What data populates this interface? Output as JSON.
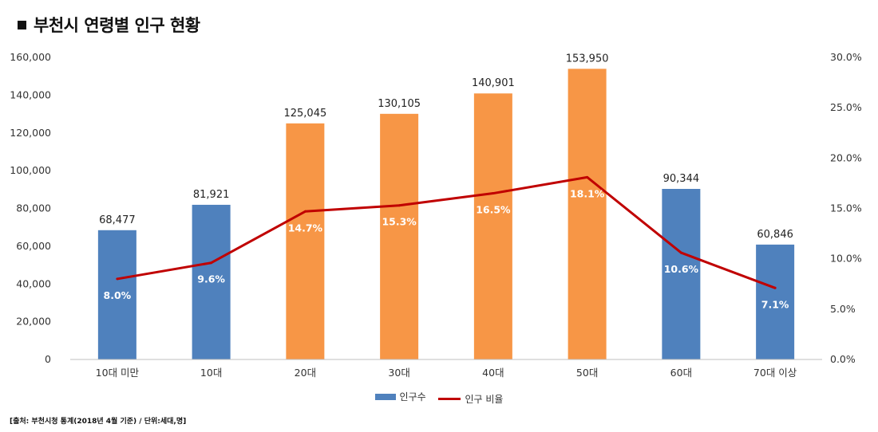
{
  "title": "부천시 연령별 인구 현황",
  "source": "[출처: 부천시청 통계(2018년 4월 기준) / 단위:세대,명]",
  "legend": {
    "bar": "인구수",
    "line": "인구 비율"
  },
  "colors": {
    "blue": "#4F81BD",
    "orange": "#F79646",
    "line": "#C00000"
  },
  "chart_data": {
    "type": "bar",
    "categories": [
      "10대 미만",
      "10대",
      "20대",
      "30대",
      "40대",
      "50대",
      "60대",
      "70대 이상"
    ],
    "series": [
      {
        "name": "인구수",
        "type": "bar",
        "axis": "left",
        "values": [
          68477,
          81921,
          125045,
          130105,
          140901,
          153950,
          90344,
          60846
        ],
        "value_labels": [
          "68,477",
          "81,921",
          "125,045",
          "130,105",
          "140,901",
          "153,950",
          "90,344",
          "60,846"
        ],
        "bar_colors": [
          "blue",
          "blue",
          "orange",
          "orange",
          "orange",
          "orange",
          "blue",
          "blue"
        ]
      },
      {
        "name": "인구 비율",
        "type": "line",
        "axis": "right",
        "values": [
          8.0,
          9.6,
          14.7,
          15.3,
          16.5,
          18.1,
          10.6,
          7.1
        ],
        "value_labels": [
          "8.0%",
          "9.6%",
          "14.7%",
          "15.3%",
          "16.5%",
          "18.1%",
          "10.6%",
          "7.1%"
        ]
      }
    ],
    "y_left": {
      "min": 0,
      "max": 160000,
      "ticks": [
        0,
        20000,
        40000,
        60000,
        80000,
        100000,
        120000,
        140000,
        160000
      ],
      "tick_labels": [
        "0",
        "20,000",
        "40,000",
        "60,000",
        "80,000",
        "100,000",
        "120,000",
        "140,000",
        "160,000"
      ]
    },
    "y_right": {
      "min": 0,
      "max": 30,
      "ticks": [
        0,
        5,
        10,
        15,
        20,
        25,
        30
      ],
      "tick_labels": [
        "0.0%",
        "5.0%",
        "10.0%",
        "15.0%",
        "20.0%",
        "25.0%",
        "30.0%"
      ]
    },
    "grid": false,
    "legend_position": "bottom"
  }
}
